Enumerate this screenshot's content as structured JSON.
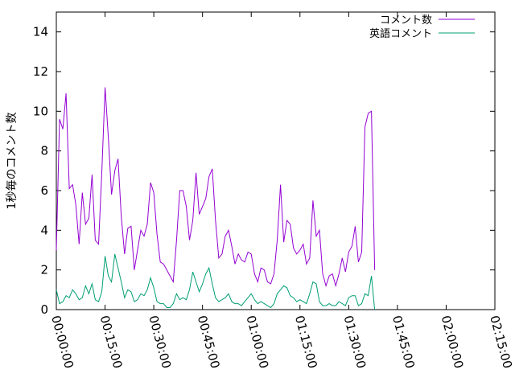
{
  "chart_data": {
    "type": "line",
    "ylabel": "1秒毎のコメント数",
    "xlabel": "",
    "xlim": [
      0,
      8100
    ],
    "ylim": [
      0,
      15
    ],
    "x_ticks": [
      {
        "value": 0,
        "label": "00:00:00"
      },
      {
        "value": 900,
        "label": "00:15:00"
      },
      {
        "value": 1800,
        "label": "00:30:00"
      },
      {
        "value": 2700,
        "label": "00:45:00"
      },
      {
        "value": 3600,
        "label": "01:00:00"
      },
      {
        "value": 4500,
        "label": "01:15:00"
      },
      {
        "value": 5400,
        "label": "01:30:00"
      },
      {
        "value": 6300,
        "label": "01:45:00"
      },
      {
        "value": 7200,
        "label": "02:00:00"
      },
      {
        "value": 8100,
        "label": "02:15:00"
      }
    ],
    "y_ticks": [
      {
        "value": 0,
        "label": "0"
      },
      {
        "value": 2,
        "label": "2"
      },
      {
        "value": 4,
        "label": "4"
      },
      {
        "value": 6,
        "label": "6"
      },
      {
        "value": 8,
        "label": "8"
      },
      {
        "value": 10,
        "label": "10"
      },
      {
        "value": 12,
        "label": "12"
      },
      {
        "value": 14,
        "label": "14"
      }
    ],
    "grid": false,
    "legend_position": "top-right",
    "x_step_seconds": 60,
    "series": [
      {
        "name": "コメント数",
        "color": "#9400d3",
        "values": [
          3.0,
          9.6,
          9.1,
          10.9,
          6.1,
          6.3,
          5.3,
          3.3,
          5.9,
          4.3,
          4.6,
          6.8,
          3.5,
          3.3,
          6.9,
          11.2,
          8.7,
          5.8,
          7.0,
          7.6,
          4.7,
          2.8,
          4.1,
          4.2,
          2.0,
          3.0,
          4.0,
          3.7,
          4.3,
          6.4,
          5.9,
          3.8,
          2.4,
          2.3,
          2.0,
          1.7,
          1.4,
          3.5,
          6.0,
          6.0,
          5.2,
          3.5,
          4.5,
          6.9,
          4.8,
          5.2,
          5.6,
          6.7,
          7.1,
          4.5,
          2.6,
          2.8,
          3.7,
          4.0,
          3.2,
          2.3,
          2.8,
          2.5,
          2.4,
          2.9,
          2.8,
          1.8,
          1.4,
          2.1,
          2.0,
          1.4,
          1.3,
          1.8,
          3.5,
          6.3,
          3.4,
          4.5,
          4.3,
          3.1,
          2.8,
          3.0,
          3.3,
          2.3,
          2.6,
          5.5,
          3.7,
          4.0,
          1.8,
          1.2,
          1.7,
          1.8,
          1.2,
          1.8,
          2.6,
          1.9,
          2.9,
          3.2,
          4.2,
          2.4,
          2.9,
          9.2,
          9.9,
          10.0,
          2.0
        ]
      },
      {
        "name": "英語コメント",
        "color": "#009e73",
        "values": [
          1.0,
          0.3,
          0.4,
          0.7,
          0.6,
          1.0,
          0.8,
          0.5,
          0.6,
          1.2,
          0.8,
          1.3,
          0.5,
          0.4,
          0.9,
          2.7,
          1.7,
          1.4,
          2.8,
          2.1,
          1.4,
          0.6,
          1.0,
          0.9,
          0.4,
          0.5,
          0.8,
          0.7,
          1.0,
          1.6,
          1.1,
          0.4,
          0.3,
          0.3,
          0.1,
          0.1,
          0.3,
          0.8,
          0.5,
          0.6,
          0.5,
          1.0,
          1.9,
          1.4,
          0.9,
          1.3,
          1.8,
          2.1,
          1.3,
          0.6,
          0.4,
          0.5,
          0.6,
          0.8,
          0.4,
          0.3,
          0.3,
          0.2,
          0.4,
          0.6,
          0.8,
          0.5,
          0.3,
          0.4,
          0.3,
          0.2,
          0.1,
          0.3,
          0.8,
          1.0,
          1.2,
          1.1,
          0.7,
          0.6,
          0.4,
          0.5,
          0.4,
          0.3,
          0.8,
          1.4,
          1.3,
          0.4,
          0.2,
          0.2,
          0.3,
          0.2,
          0.2,
          0.4,
          0.3,
          0.2,
          0.6,
          0.7,
          0.7,
          0.2,
          0.3,
          0.8,
          0.7,
          1.7,
          0.0
        ]
      }
    ]
  }
}
